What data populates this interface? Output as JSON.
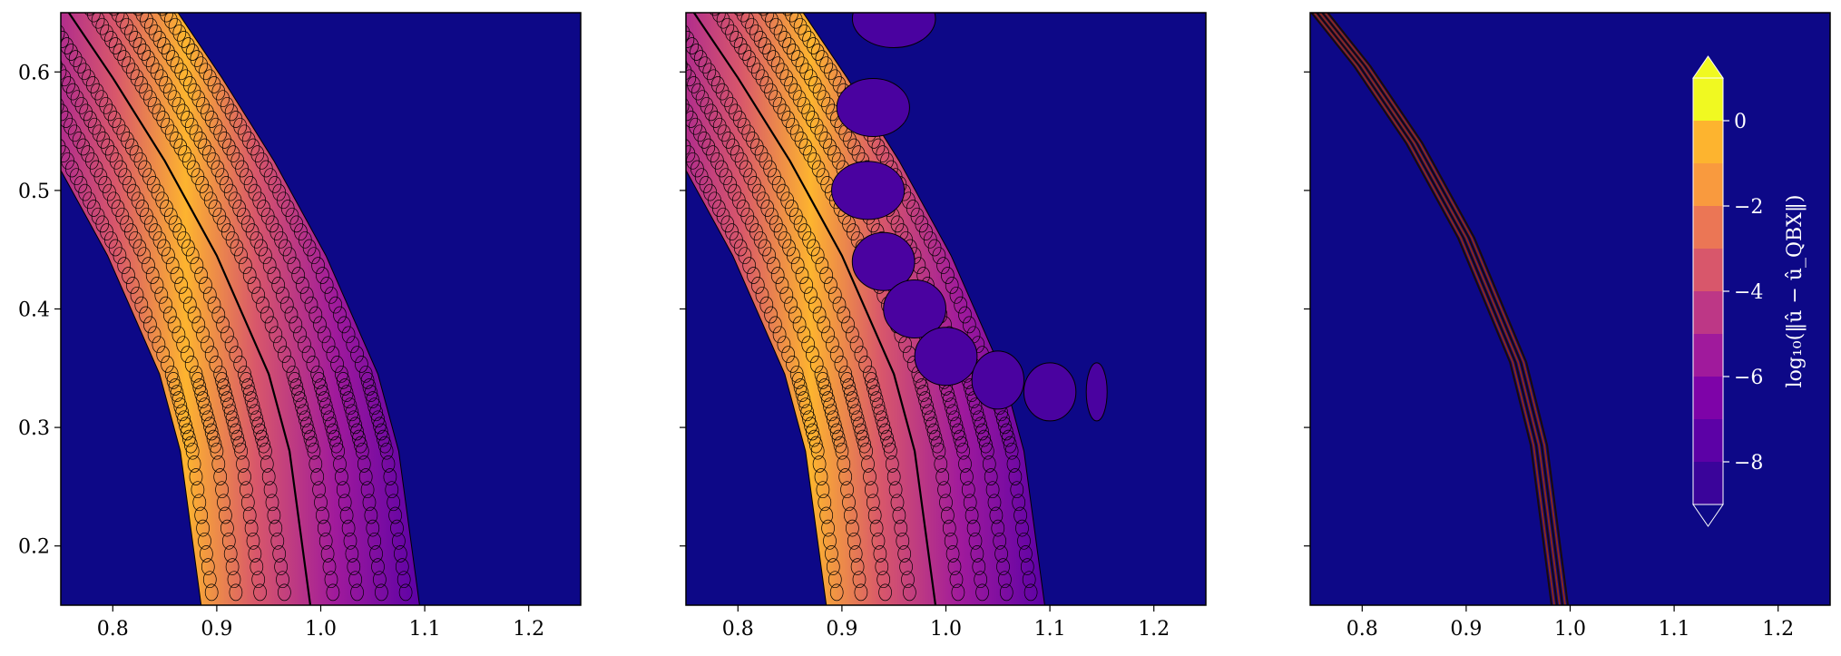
{
  "chart_data": [
    {
      "type": "contour",
      "panel": 1,
      "xlim": [
        0.75,
        1.25
      ],
      "ylim": [
        0.15,
        0.65
      ],
      "x_ticks": [
        "0.8",
        "0.9",
        "1.0",
        "1.1",
        "1.2"
      ],
      "y_ticks": [
        "0.2",
        "0.3",
        "0.4",
        "0.5",
        "0.6"
      ],
      "x_tick_values": [
        0.8,
        0.9,
        1.0,
        1.1,
        1.2
      ],
      "y_tick_values": [
        0.2,
        0.3,
        0.4,
        0.5,
        0.6
      ],
      "curve": [
        [
          0.75,
          0.66
        ],
        [
          0.8,
          0.595
        ],
        [
          0.85,
          0.525
        ],
        [
          0.9,
          0.445
        ],
        [
          0.95,
          0.345
        ],
        [
          0.97,
          0.28
        ],
        [
          0.99,
          0.15
        ]
      ],
      "band_half_width": 0.105
    },
    {
      "type": "contour",
      "panel": 2,
      "xlim": [
        0.75,
        1.25
      ],
      "ylim": [
        0.15,
        0.65
      ],
      "x_ticks": [
        "0.8",
        "0.9",
        "1.0",
        "1.1",
        "1.2"
      ],
      "x_tick_values": [
        0.8,
        0.9,
        1.0,
        1.1,
        1.2
      ],
      "y_tick_values": [
        0.2,
        0.3,
        0.4,
        0.5,
        0.6
      ],
      "curve": [
        [
          0.75,
          0.66
        ],
        [
          0.8,
          0.595
        ],
        [
          0.85,
          0.525
        ],
        [
          0.9,
          0.445
        ],
        [
          0.95,
          0.345
        ],
        [
          0.97,
          0.28
        ],
        [
          0.99,
          0.15
        ]
      ],
      "band_half_width": 0.105
    },
    {
      "type": "contour",
      "panel": 3,
      "xlim": [
        0.75,
        1.25
      ],
      "ylim": [
        0.15,
        0.65
      ],
      "x_ticks": [
        "0.8",
        "0.9",
        "1.0",
        "1.1",
        "1.2"
      ],
      "x_tick_values": [
        0.8,
        0.9,
        1.0,
        1.1,
        1.2
      ],
      "y_tick_values": [
        0.2,
        0.3,
        0.4,
        0.5,
        0.6
      ],
      "curve": [
        [
          0.75,
          0.66
        ],
        [
          0.8,
          0.605
        ],
        [
          0.85,
          0.54
        ],
        [
          0.9,
          0.46
        ],
        [
          0.95,
          0.355
        ],
        [
          0.97,
          0.285
        ],
        [
          0.99,
          0.15
        ]
      ]
    }
  ],
  "colorbar": {
    "label": "log₁₀(‖û − û_QBX‖)",
    "ticks": [
      "0",
      "−2",
      "−4",
      "−6",
      "−8"
    ],
    "tick_values": [
      0,
      -2,
      -4,
      -6,
      -8
    ],
    "levels": [
      1,
      0,
      -1,
      -2,
      -3,
      -4,
      -5,
      -6,
      -7,
      -8,
      -9
    ],
    "colors": [
      "#f0f921",
      "#fdb42f",
      "#f99a3e",
      "#eb7655",
      "#d8576b",
      "#bd3786",
      "#a01a9c",
      "#7e03a8",
      "#5c01a6",
      "#3a049a",
      "#0d0887"
    ],
    "extend": "both"
  },
  "colors": {
    "background": "#0d0887",
    "line": "#000000"
  }
}
